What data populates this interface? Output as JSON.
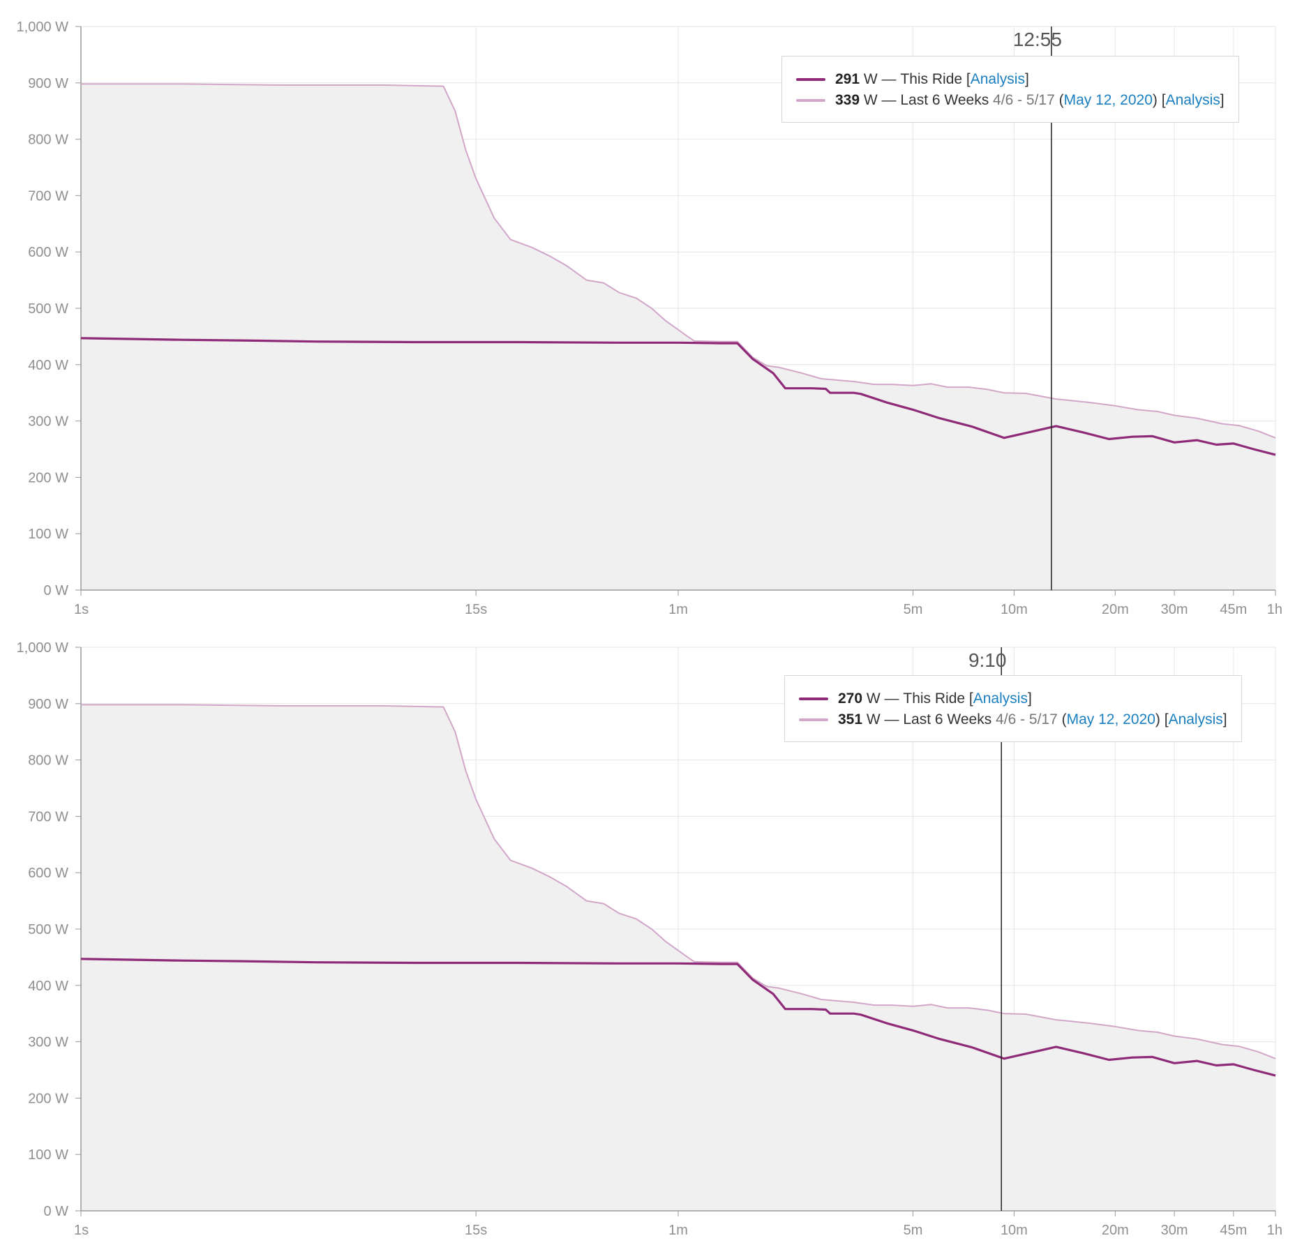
{
  "colors": {
    "this_ride": "#8e2a78",
    "last_6_weeks": "#d2a6c8",
    "fill": "#f0f0f0",
    "grid": "#e6e6e6",
    "axis": "#999999",
    "cursor": "#222222",
    "link": "#1a7fc0"
  },
  "panels": [
    {
      "cursor_label": "12:55",
      "legend": {
        "rows": [
          {
            "series": "this_ride",
            "value": "291",
            "unit_sep": " W — ",
            "name": "This Ride",
            "range": "",
            "date_open": "",
            "date": "",
            "date_close": "",
            "link": "Analysis"
          },
          {
            "series": "last_6_weeks",
            "value": "339",
            "unit_sep": " W — ",
            "name": "Last 6 Weeks",
            "range": " 4/6 - 5/17 ",
            "date_open": "(",
            "date": "May 12, 2020",
            "date_close": ") ",
            "link": "Analysis"
          }
        ]
      }
    },
    {
      "cursor_label": "9:10",
      "legend": {
        "rows": [
          {
            "series": "this_ride",
            "value": "270",
            "unit_sep": " W — ",
            "name": "This Ride",
            "range": "",
            "date_open": "",
            "date": "",
            "date_close": "",
            "link": "Analysis"
          },
          {
            "series": "last_6_weeks",
            "value": "351",
            "unit_sep": " W — ",
            "name": "Last 6 Weeks",
            "range": " 4/6 - 5/17 ",
            "date_open": "(",
            "date": "May 12, 2020",
            "date_close": ") ",
            "link": "Analysis"
          }
        ]
      }
    }
  ],
  "chart_data": [
    {
      "type": "line",
      "x_scale": "log",
      "x_unit": "seconds",
      "xlim": [
        1,
        3600
      ],
      "ylim": [
        0,
        1000
      ],
      "grid": true,
      "legend_position": "top-right",
      "y_ticks": [
        {
          "value": 0,
          "label": "0 W"
        },
        {
          "value": 100,
          "label": "100 W"
        },
        {
          "value": 200,
          "label": "200 W"
        },
        {
          "value": 300,
          "label": "300 W"
        },
        {
          "value": 400,
          "label": "400 W"
        },
        {
          "value": 500,
          "label": "500 W"
        },
        {
          "value": 600,
          "label": "600 W"
        },
        {
          "value": 700,
          "label": "700 W"
        },
        {
          "value": 800,
          "label": "800 W"
        },
        {
          "value": 900,
          "label": "900 W"
        },
        {
          "value": 1000,
          "label": "1,000 W"
        }
      ],
      "x_ticks": [
        {
          "value": 1,
          "label": "1s"
        },
        {
          "value": 15,
          "label": "15s"
        },
        {
          "value": 60,
          "label": "1m"
        },
        {
          "value": 300,
          "label": "5m"
        },
        {
          "value": 600,
          "label": "10m"
        },
        {
          "value": 1200,
          "label": "20m"
        },
        {
          "value": 1800,
          "label": "30m"
        },
        {
          "value": 2700,
          "label": "45m"
        },
        {
          "value": 3600,
          "label": "1h"
        }
      ],
      "cursor_x": 775,
      "series": [
        {
          "name": "This Ride",
          "points": [
            [
              1,
              447
            ],
            [
              2,
              444
            ],
            [
              3,
              443
            ],
            [
              5,
              441
            ],
            [
              10,
              440
            ],
            [
              20,
              440
            ],
            [
              40,
              439
            ],
            [
              60,
              439
            ],
            [
              80,
              438
            ],
            [
              90,
              438
            ],
            [
              100,
              410
            ],
            [
              115,
              385
            ],
            [
              125,
              358
            ],
            [
              150,
              358
            ],
            [
              165,
              357
            ],
            [
              170,
              350
            ],
            [
              200,
              350
            ],
            [
              210,
              348
            ],
            [
              250,
              333
            ],
            [
              300,
              320
            ],
            [
              360,
              305
            ],
            [
              450,
              290
            ],
            [
              560,
              270
            ],
            [
              700,
              283
            ],
            [
              800,
              291
            ],
            [
              960,
              280
            ],
            [
              1150,
              268
            ],
            [
              1350,
              272
            ],
            [
              1550,
              273
            ],
            [
              1800,
              262
            ],
            [
              2100,
              266
            ],
            [
              2400,
              258
            ],
            [
              2700,
              260
            ],
            [
              3100,
              250
            ],
            [
              3600,
              240
            ]
          ]
        },
        {
          "name": "Last 6 Weeks",
          "points": [
            [
              1,
              898
            ],
            [
              2,
              898
            ],
            [
              4,
              896
            ],
            [
              8,
              896
            ],
            [
              12,
              894
            ],
            [
              13,
              850
            ],
            [
              14,
              780
            ],
            [
              15,
              730
            ],
            [
              17,
              660
            ],
            [
              19,
              622
            ],
            [
              22,
              608
            ],
            [
              25,
              592
            ],
            [
              28,
              575
            ],
            [
              32,
              550
            ],
            [
              36,
              545
            ],
            [
              40,
              528
            ],
            [
              45,
              518
            ],
            [
              50,
              500
            ],
            [
              55,
              478
            ],
            [
              60,
              462
            ],
            [
              64,
              450
            ],
            [
              67,
              442
            ],
            [
              80,
              441
            ],
            [
              90,
              441
            ],
            [
              100,
              413
            ],
            [
              110,
              398
            ],
            [
              120,
              395
            ],
            [
              140,
              385
            ],
            [
              160,
              375
            ],
            [
              175,
              373
            ],
            [
              200,
              370
            ],
            [
              230,
              365
            ],
            [
              260,
              365
            ],
            [
              300,
              363
            ],
            [
              340,
              366
            ],
            [
              380,
              360
            ],
            [
              440,
              360
            ],
            [
              500,
              356
            ],
            [
              560,
              350
            ],
            [
              650,
              349
            ],
            [
              800,
              339
            ],
            [
              1000,
              333
            ],
            [
              1200,
              327
            ],
            [
              1400,
              320
            ],
            [
              1600,
              317
            ],
            [
              1800,
              310
            ],
            [
              2100,
              305
            ],
            [
              2500,
              295
            ],
            [
              2800,
              292
            ],
            [
              3200,
              282
            ],
            [
              3600,
              270
            ]
          ]
        }
      ]
    },
    {
      "type": "line",
      "x_scale": "log",
      "x_unit": "seconds",
      "xlim": [
        1,
        3600
      ],
      "ylim": [
        0,
        1000
      ],
      "grid": true,
      "legend_position": "top-right",
      "y_ticks": [
        {
          "value": 0,
          "label": "0 W"
        },
        {
          "value": 100,
          "label": "100 W"
        },
        {
          "value": 200,
          "label": "200 W"
        },
        {
          "value": 300,
          "label": "300 W"
        },
        {
          "value": 400,
          "label": "400 W"
        },
        {
          "value": 500,
          "label": "500 W"
        },
        {
          "value": 600,
          "label": "600 W"
        },
        {
          "value": 700,
          "label": "700 W"
        },
        {
          "value": 800,
          "label": "800 W"
        },
        {
          "value": 900,
          "label": "900 W"
        },
        {
          "value": 1000,
          "label": "1,000 W"
        }
      ],
      "x_ticks": [
        {
          "value": 1,
          "label": "1s"
        },
        {
          "value": 15,
          "label": "15s"
        },
        {
          "value": 60,
          "label": "1m"
        },
        {
          "value": 300,
          "label": "5m"
        },
        {
          "value": 600,
          "label": "10m"
        },
        {
          "value": 1200,
          "label": "20m"
        },
        {
          "value": 1800,
          "label": "30m"
        },
        {
          "value": 2700,
          "label": "45m"
        },
        {
          "value": 3600,
          "label": "1h"
        }
      ],
      "cursor_x": 550,
      "series": [
        {
          "name": "This Ride",
          "points": [
            [
              1,
              447
            ],
            [
              2,
              444
            ],
            [
              3,
              443
            ],
            [
              5,
              441
            ],
            [
              10,
              440
            ],
            [
              20,
              440
            ],
            [
              40,
              439
            ],
            [
              60,
              439
            ],
            [
              80,
              438
            ],
            [
              90,
              438
            ],
            [
              100,
              410
            ],
            [
              115,
              385
            ],
            [
              125,
              358
            ],
            [
              150,
              358
            ],
            [
              165,
              357
            ],
            [
              170,
              350
            ],
            [
              200,
              350
            ],
            [
              210,
              348
            ],
            [
              250,
              333
            ],
            [
              300,
              320
            ],
            [
              360,
              305
            ],
            [
              450,
              290
            ],
            [
              560,
              270
            ],
            [
              700,
              283
            ],
            [
              800,
              291
            ],
            [
              960,
              280
            ],
            [
              1150,
              268
            ],
            [
              1350,
              272
            ],
            [
              1550,
              273
            ],
            [
              1800,
              262
            ],
            [
              2100,
              266
            ],
            [
              2400,
              258
            ],
            [
              2700,
              260
            ],
            [
              3100,
              250
            ],
            [
              3600,
              240
            ]
          ]
        },
        {
          "name": "Last 6 Weeks",
          "points": [
            [
              1,
              898
            ],
            [
              2,
              898
            ],
            [
              4,
              896
            ],
            [
              8,
              896
            ],
            [
              12,
              894
            ],
            [
              13,
              850
            ],
            [
              14,
              780
            ],
            [
              15,
              730
            ],
            [
              17,
              660
            ],
            [
              19,
              622
            ],
            [
              22,
              608
            ],
            [
              25,
              592
            ],
            [
              28,
              575
            ],
            [
              32,
              550
            ],
            [
              36,
              545
            ],
            [
              40,
              528
            ],
            [
              45,
              518
            ],
            [
              50,
              500
            ],
            [
              55,
              478
            ],
            [
              60,
              462
            ],
            [
              64,
              450
            ],
            [
              67,
              442
            ],
            [
              80,
              441
            ],
            [
              90,
              441
            ],
            [
              100,
              413
            ],
            [
              110,
              398
            ],
            [
              120,
              395
            ],
            [
              140,
              385
            ],
            [
              160,
              375
            ],
            [
              175,
              373
            ],
            [
              200,
              370
            ],
            [
              230,
              365
            ],
            [
              260,
              365
            ],
            [
              300,
              363
            ],
            [
              340,
              366
            ],
            [
              380,
              360
            ],
            [
              440,
              360
            ],
            [
              500,
              356
            ],
            [
              560,
              350
            ],
            [
              650,
              349
            ],
            [
              800,
              339
            ],
            [
              1000,
              333
            ],
            [
              1200,
              327
            ],
            [
              1400,
              320
            ],
            [
              1600,
              317
            ],
            [
              1800,
              310
            ],
            [
              2100,
              305
            ],
            [
              2500,
              295
            ],
            [
              2800,
              292
            ],
            [
              3200,
              282
            ],
            [
              3600,
              270
            ]
          ]
        }
      ]
    }
  ]
}
